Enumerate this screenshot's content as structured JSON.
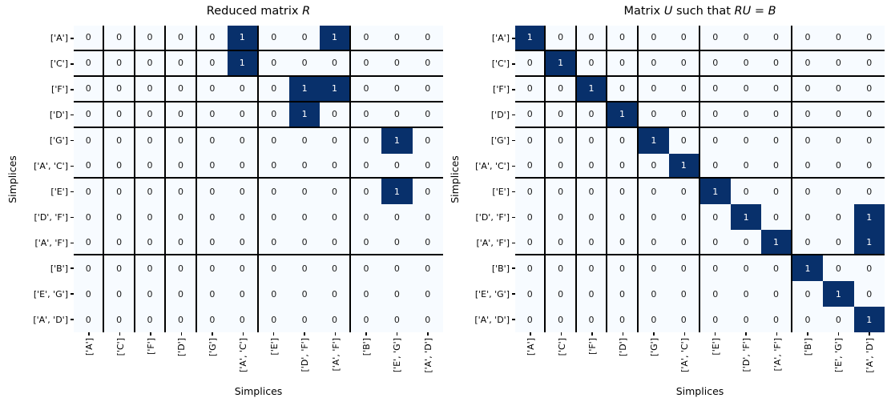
{
  "figure": {
    "background": "#ffffff"
  },
  "chart_data": [
    {
      "type": "heatmap",
      "title": "Reduced matrix R",
      "title_parts": [
        {
          "text": "Reduced matrix ",
          "italic": false
        },
        {
          "text": "R",
          "italic": true
        }
      ],
      "xlabel": "Simplices",
      "ylabel": "Simplices",
      "row_labels": [
        "['A']",
        "['C']",
        "['F']",
        "['D']",
        "['G']",
        "['A', 'C']",
        "['E']",
        "['D', 'F']",
        "['A', 'F']",
        "['B']",
        "['E', 'G']",
        "['A', 'D']"
      ],
      "col_labels": [
        "['A']",
        "['C']",
        "['F']",
        "['D']",
        "['G']",
        "['A', 'C']",
        "['E']",
        "['D', 'F']",
        "['A', 'F']",
        "['B']",
        "['E', 'G']",
        "['A', 'D']"
      ],
      "values": [
        [
          0,
          0,
          0,
          0,
          0,
          1,
          0,
          0,
          1,
          0,
          0,
          0
        ],
        [
          0,
          0,
          0,
          0,
          0,
          1,
          0,
          0,
          0,
          0,
          0,
          0
        ],
        [
          0,
          0,
          0,
          0,
          0,
          0,
          0,
          1,
          1,
          0,
          0,
          0
        ],
        [
          0,
          0,
          0,
          0,
          0,
          0,
          0,
          1,
          0,
          0,
          0,
          0
        ],
        [
          0,
          0,
          0,
          0,
          0,
          0,
          0,
          0,
          0,
          0,
          1,
          0
        ],
        [
          0,
          0,
          0,
          0,
          0,
          0,
          0,
          0,
          0,
          0,
          0,
          0
        ],
        [
          0,
          0,
          0,
          0,
          0,
          0,
          0,
          0,
          0,
          0,
          1,
          0
        ],
        [
          0,
          0,
          0,
          0,
          0,
          0,
          0,
          0,
          0,
          0,
          0,
          0
        ],
        [
          0,
          0,
          0,
          0,
          0,
          0,
          0,
          0,
          0,
          0,
          0,
          0
        ],
        [
          0,
          0,
          0,
          0,
          0,
          0,
          0,
          0,
          0,
          0,
          0,
          0
        ],
        [
          0,
          0,
          0,
          0,
          0,
          0,
          0,
          0,
          0,
          0,
          0,
          0
        ],
        [
          0,
          0,
          0,
          0,
          0,
          0,
          0,
          0,
          0,
          0,
          0,
          0
        ]
      ],
      "separators_after": [
        0,
        1,
        2,
        3,
        5,
        8
      ],
      "value_range": [
        0,
        1
      ],
      "grid": false,
      "colors": {
        "low": "#f7fbff",
        "high": "#08306b",
        "separator": "#000000",
        "annotation_low": "#1a1a1a",
        "annotation_high": "#ffffff"
      }
    },
    {
      "type": "heatmap",
      "title": "Matrix U such that RU = B",
      "title_parts": [
        {
          "text": "Matrix ",
          "italic": false
        },
        {
          "text": "U",
          "italic": true
        },
        {
          "text": " such that ",
          "italic": false
        },
        {
          "text": "RU",
          "italic": true
        },
        {
          "text": " = ",
          "italic": false
        },
        {
          "text": "B",
          "italic": true
        }
      ],
      "xlabel": "Simplices",
      "ylabel": "Simplices",
      "row_labels": [
        "['A']",
        "['C']",
        "['F']",
        "['D']",
        "['G']",
        "['A', 'C']",
        "['E']",
        "['D', 'F']",
        "['A', 'F']",
        "['B']",
        "['E', 'G']",
        "['A', 'D']"
      ],
      "col_labels": [
        "['A']",
        "['C']",
        "['F']",
        "['D']",
        "['G']",
        "['A', 'C']",
        "['E']",
        "['D', 'F']",
        "['A', 'F']",
        "['B']",
        "['E', 'G']",
        "['A', 'D']"
      ],
      "values": [
        [
          1,
          0,
          0,
          0,
          0,
          0,
          0,
          0,
          0,
          0,
          0,
          0
        ],
        [
          0,
          1,
          0,
          0,
          0,
          0,
          0,
          0,
          0,
          0,
          0,
          0
        ],
        [
          0,
          0,
          1,
          0,
          0,
          0,
          0,
          0,
          0,
          0,
          0,
          0
        ],
        [
          0,
          0,
          0,
          1,
          0,
          0,
          0,
          0,
          0,
          0,
          0,
          0
        ],
        [
          0,
          0,
          0,
          0,
          1,
          0,
          0,
          0,
          0,
          0,
          0,
          0
        ],
        [
          0,
          0,
          0,
          0,
          0,
          1,
          0,
          0,
          0,
          0,
          0,
          0
        ],
        [
          0,
          0,
          0,
          0,
          0,
          0,
          1,
          0,
          0,
          0,
          0,
          0
        ],
        [
          0,
          0,
          0,
          0,
          0,
          0,
          0,
          1,
          0,
          0,
          0,
          1
        ],
        [
          0,
          0,
          0,
          0,
          0,
          0,
          0,
          0,
          1,
          0,
          0,
          1
        ],
        [
          0,
          0,
          0,
          0,
          0,
          0,
          0,
          0,
          0,
          1,
          0,
          0
        ],
        [
          0,
          0,
          0,
          0,
          0,
          0,
          0,
          0,
          0,
          0,
          1,
          0
        ],
        [
          0,
          0,
          0,
          0,
          0,
          0,
          0,
          0,
          0,
          0,
          0,
          1
        ]
      ],
      "separators_after": [
        0,
        1,
        2,
        3,
        5,
        8
      ],
      "value_range": [
        0,
        1
      ],
      "grid": false,
      "colors": {
        "low": "#f7fbff",
        "high": "#08306b",
        "separator": "#000000",
        "annotation_low": "#1a1a1a",
        "annotation_high": "#ffffff"
      }
    }
  ]
}
